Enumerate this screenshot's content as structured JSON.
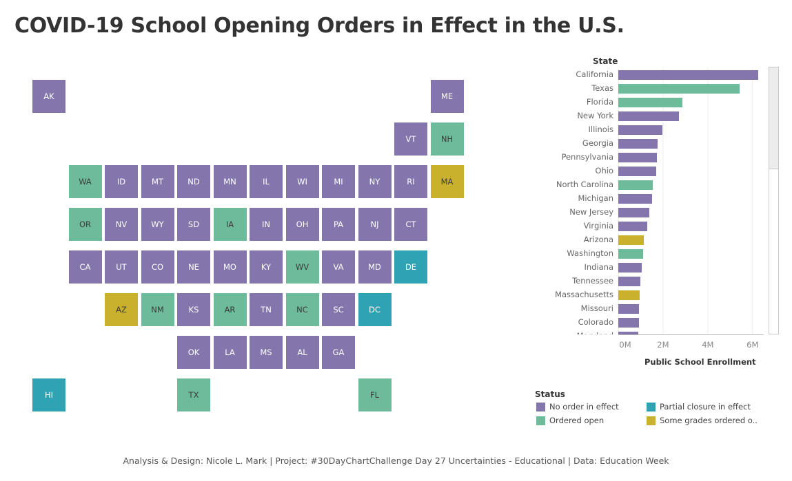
{
  "title": "COVID-19 School Opening Orders in Effect in the U.S.",
  "footer": "Analysis & Design: Nicole L. Mark | Project: #30DayChartChallenge Day 27 Uncertainties - Educational | Data: Education Week",
  "colors": {
    "no_order": "#8476ac",
    "ordered_open": "#6dbb9a",
    "partial_closure": "#2fa3b4",
    "some_grades": "#c9b12e",
    "gridline": "#eeeeee",
    "axis": "#bbbbbb"
  },
  "legend": {
    "title": "Status",
    "items": [
      {
        "key": "no_order",
        "label": "No order in effect"
      },
      {
        "key": "partial_closure",
        "label": "Partial closure in effect"
      },
      {
        "key": "ordered_open",
        "label": "Ordered open"
      },
      {
        "key": "some_grades",
        "label": "Some grades ordered o.."
      }
    ]
  },
  "chart_data": [
    {
      "type": "tile-map",
      "tiles": [
        {
          "state": "AK",
          "row": 0,
          "col": 0,
          "status": "no_order"
        },
        {
          "state": "ME",
          "row": 0,
          "col": 11,
          "status": "no_order"
        },
        {
          "state": "VT",
          "row": 1,
          "col": 10,
          "status": "no_order"
        },
        {
          "state": "NH",
          "row": 1,
          "col": 11,
          "status": "ordered_open"
        },
        {
          "state": "WA",
          "row": 2,
          "col": 1,
          "status": "ordered_open"
        },
        {
          "state": "ID",
          "row": 2,
          "col": 2,
          "status": "no_order"
        },
        {
          "state": "MT",
          "row": 2,
          "col": 3,
          "status": "no_order"
        },
        {
          "state": "ND",
          "row": 2,
          "col": 4,
          "status": "no_order"
        },
        {
          "state": "MN",
          "row": 2,
          "col": 5,
          "status": "no_order"
        },
        {
          "state": "IL",
          "row": 2,
          "col": 6,
          "status": "no_order"
        },
        {
          "state": "WI",
          "row": 2,
          "col": 7,
          "status": "no_order"
        },
        {
          "state": "MI",
          "row": 2,
          "col": 8,
          "status": "no_order"
        },
        {
          "state": "NY",
          "row": 2,
          "col": 9,
          "status": "no_order"
        },
        {
          "state": "RI",
          "row": 2,
          "col": 10,
          "status": "no_order"
        },
        {
          "state": "MA",
          "row": 2,
          "col": 11,
          "status": "some_grades"
        },
        {
          "state": "OR",
          "row": 3,
          "col": 1,
          "status": "ordered_open"
        },
        {
          "state": "NV",
          "row": 3,
          "col": 2,
          "status": "no_order"
        },
        {
          "state": "WY",
          "row": 3,
          "col": 3,
          "status": "no_order"
        },
        {
          "state": "SD",
          "row": 3,
          "col": 4,
          "status": "no_order"
        },
        {
          "state": "IA",
          "row": 3,
          "col": 5,
          "status": "ordered_open"
        },
        {
          "state": "IN",
          "row": 3,
          "col": 6,
          "status": "no_order"
        },
        {
          "state": "OH",
          "row": 3,
          "col": 7,
          "status": "no_order"
        },
        {
          "state": "PA",
          "row": 3,
          "col": 8,
          "status": "no_order"
        },
        {
          "state": "NJ",
          "row": 3,
          "col": 9,
          "status": "no_order"
        },
        {
          "state": "CT",
          "row": 3,
          "col": 10,
          "status": "no_order"
        },
        {
          "state": "CA",
          "row": 4,
          "col": 1,
          "status": "no_order"
        },
        {
          "state": "UT",
          "row": 4,
          "col": 2,
          "status": "no_order"
        },
        {
          "state": "CO",
          "row": 4,
          "col": 3,
          "status": "no_order"
        },
        {
          "state": "NE",
          "row": 4,
          "col": 4,
          "status": "no_order"
        },
        {
          "state": "MO",
          "row": 4,
          "col": 5,
          "status": "no_order"
        },
        {
          "state": "KY",
          "row": 4,
          "col": 6,
          "status": "no_order"
        },
        {
          "state": "WV",
          "row": 4,
          "col": 7,
          "status": "ordered_open"
        },
        {
          "state": "VA",
          "row": 4,
          "col": 8,
          "status": "no_order"
        },
        {
          "state": "MD",
          "row": 4,
          "col": 9,
          "status": "no_order"
        },
        {
          "state": "DE",
          "row": 4,
          "col": 10,
          "status": "partial_closure"
        },
        {
          "state": "AZ",
          "row": 5,
          "col": 2,
          "status": "some_grades"
        },
        {
          "state": "NM",
          "row": 5,
          "col": 3,
          "status": "ordered_open"
        },
        {
          "state": "KS",
          "row": 5,
          "col": 4,
          "status": "no_order"
        },
        {
          "state": "AR",
          "row": 5,
          "col": 5,
          "status": "ordered_open"
        },
        {
          "state": "TN",
          "row": 5,
          "col": 6,
          "status": "no_order"
        },
        {
          "state": "NC",
          "row": 5,
          "col": 7,
          "status": "ordered_open"
        },
        {
          "state": "SC",
          "row": 5,
          "col": 8,
          "status": "no_order"
        },
        {
          "state": "DC",
          "row": 5,
          "col": 9,
          "status": "partial_closure"
        },
        {
          "state": "OK",
          "row": 6,
          "col": 4,
          "status": "no_order"
        },
        {
          "state": "LA",
          "row": 6,
          "col": 5,
          "status": "no_order"
        },
        {
          "state": "MS",
          "row": 6,
          "col": 6,
          "status": "no_order"
        },
        {
          "state": "AL",
          "row": 6,
          "col": 7,
          "status": "no_order"
        },
        {
          "state": "GA",
          "row": 6,
          "col": 8,
          "status": "no_order"
        },
        {
          "state": "HI",
          "row": 7,
          "col": 0,
          "status": "partial_closure"
        },
        {
          "state": "TX",
          "row": 7,
          "col": 4,
          "status": "ordered_open"
        },
        {
          "state": "FL",
          "row": 7,
          "col": 9,
          "status": "ordered_open"
        }
      ]
    },
    {
      "type": "bar",
      "orientation": "horizontal",
      "ylabel": "State",
      "xlabel": "Public School Enrollment",
      "xlim": [
        0,
        6500000
      ],
      "xticks": [
        0,
        2000000,
        4000000,
        6000000
      ],
      "xtick_labels": [
        "0M",
        "2M",
        "4M",
        "6M"
      ],
      "grid": true,
      "bars": [
        {
          "state": "California",
          "value": 6250000,
          "status": "no_order"
        },
        {
          "state": "Texas",
          "value": 5430000,
          "status": "ordered_open"
        },
        {
          "state": "Florida",
          "value": 2850000,
          "status": "ordered_open"
        },
        {
          "state": "New York",
          "value": 2700000,
          "status": "no_order"
        },
        {
          "state": "Illinois",
          "value": 1980000,
          "status": "no_order"
        },
        {
          "state": "Georgia",
          "value": 1760000,
          "status": "no_order"
        },
        {
          "state": "Pennsylvania",
          "value": 1720000,
          "status": "no_order"
        },
        {
          "state": "Ohio",
          "value": 1690000,
          "status": "no_order"
        },
        {
          "state": "North Carolina",
          "value": 1550000,
          "status": "ordered_open"
        },
        {
          "state": "Michigan",
          "value": 1500000,
          "status": "no_order"
        },
        {
          "state": "New Jersey",
          "value": 1400000,
          "status": "no_order"
        },
        {
          "state": "Virginia",
          "value": 1290000,
          "status": "no_order"
        },
        {
          "state": "Arizona",
          "value": 1140000,
          "status": "some_grades"
        },
        {
          "state": "Washington",
          "value": 1110000,
          "status": "ordered_open"
        },
        {
          "state": "Indiana",
          "value": 1050000,
          "status": "no_order"
        },
        {
          "state": "Tennessee",
          "value": 1000000,
          "status": "no_order"
        },
        {
          "state": "Massachusetts",
          "value": 960000,
          "status": "some_grades"
        },
        {
          "state": "Missouri",
          "value": 910000,
          "status": "no_order"
        },
        {
          "state": "Colorado",
          "value": 910000,
          "status": "no_order"
        },
        {
          "state": "Maryland",
          "value": 890000,
          "status": "no_order"
        }
      ]
    }
  ]
}
